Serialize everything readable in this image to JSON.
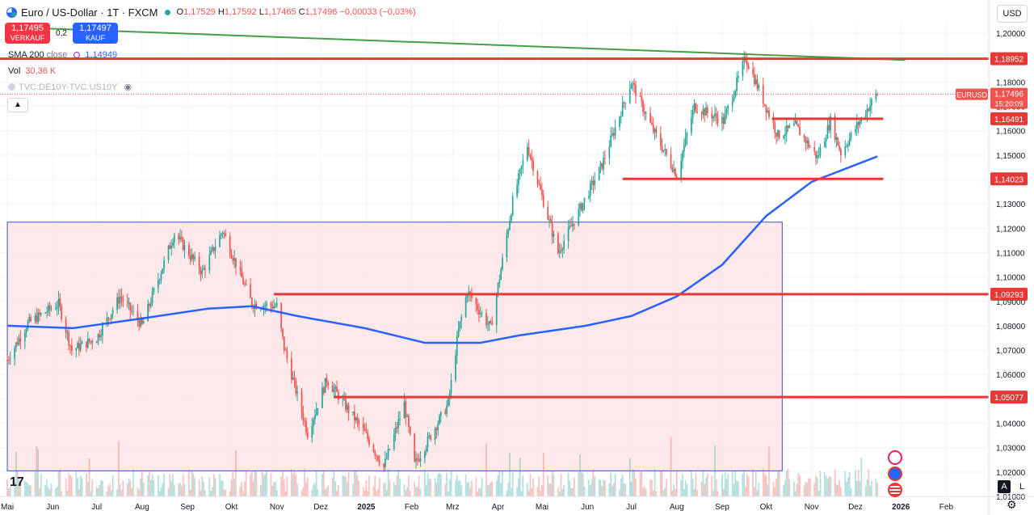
{
  "header": {
    "title": "Euro / US-Dollar · 1T · FXCM",
    "open_label": "O",
    "open": "1,17529",
    "high_label": "H",
    "high": "1,17592",
    "low_label": "L",
    "low": "1,17465",
    "close_label": "C",
    "close": "1,17496",
    "change": "−0,00033 (−0,03%)"
  },
  "trade": {
    "sell_price": "1,17495",
    "sell_label": "VERKAUF",
    "spread": "0,2",
    "buy_price": "1,17497",
    "buy_label": "KAUF"
  },
  "indicators": {
    "sma_label": "SMA 200",
    "sma_source": "close",
    "sma_value": "1,14949",
    "vol_label": "Vol",
    "vol_value": "30,36 K",
    "compare_label": "TVC:DE10Y-TVC:US10Y"
  },
  "currency_button": "USD",
  "colors": {
    "up": "#26a69a",
    "down": "#ef5350",
    "sma": "#2962ff",
    "trend": "#43a047",
    "level": "#e53935",
    "zone_fill": "#fde4e6",
    "zone_border": "#3f51b5"
  },
  "chart_data": {
    "type": "candlestick",
    "symbol": "EURUSD",
    "interval": "1T",
    "ylim": [
      1.01,
      1.205
    ],
    "y_ticks": [
      "1,20000",
      "1,19000",
      "1,18000",
      "1,17000",
      "1,16000",
      "1,15000",
      "1,14000",
      "1,13000",
      "1,12000",
      "1,11000",
      "1,10000",
      "1,09000",
      "1,08000",
      "1,07000",
      "1,06000",
      "1,05000",
      "1,04000",
      "1,03000",
      "1,02000",
      "1,01000"
    ],
    "x_ticks": [
      "Mai",
      "Jun",
      "Jul",
      "Aug",
      "Sep",
      "Okt",
      "Nov",
      "Dez",
      "2025",
      "Feb",
      "Mrz",
      "Apr",
      "Mai",
      "Jun",
      "Jul",
      "Aug",
      "Sep",
      "Okt",
      "Nov",
      "Dez",
      "2026",
      "Feb"
    ],
    "price_path": [
      [
        "2024-05-01",
        1.066
      ],
      [
        "2024-05-15",
        1.081
      ],
      [
        "2024-06-05",
        1.089
      ],
      [
        "2024-06-14",
        1.07
      ],
      [
        "2024-07-01",
        1.075
      ],
      [
        "2024-07-17",
        1.092
      ],
      [
        "2024-08-01",
        1.08
      ],
      [
        "2024-08-23",
        1.118
      ],
      [
        "2024-09-11",
        1.102
      ],
      [
        "2024-09-25",
        1.119
      ],
      [
        "2024-10-15",
        1.089
      ],
      [
        "2024-11-01",
        1.088
      ],
      [
        "2024-11-06",
        1.071
      ],
      [
        "2024-11-22",
        1.036
      ],
      [
        "2024-12-05",
        1.058
      ],
      [
        "2024-12-31",
        1.036
      ],
      [
        "2025-01-13",
        1.022
      ],
      [
        "2025-01-27",
        1.048
      ],
      [
        "2025-02-03",
        1.023
      ],
      [
        "2025-02-26",
        1.048
      ],
      [
        "2025-03-05",
        1.078
      ],
      [
        "2025-03-11",
        1.094
      ],
      [
        "2025-03-27",
        1.079
      ],
      [
        "2025-04-11",
        1.131
      ],
      [
        "2025-04-21",
        1.154
      ],
      [
        "2025-05-12",
        1.11
      ],
      [
        "2025-06-11",
        1.146
      ],
      [
        "2025-07-01",
        1.18
      ],
      [
        "2025-07-16",
        1.16
      ],
      [
        "2025-08-01",
        1.142
      ],
      [
        "2025-08-13",
        1.17
      ],
      [
        "2025-09-02",
        1.164
      ],
      [
        "2025-09-17",
        1.19
      ],
      [
        "2025-10-09",
        1.158
      ],
      [
        "2025-10-21",
        1.162
      ],
      [
        "2025-11-05",
        1.149
      ],
      [
        "2025-11-14",
        1.164
      ],
      [
        "2025-11-21",
        1.151
      ],
      [
        "2025-12-05",
        1.165
      ],
      [
        "2025-12-16",
        1.1755
      ]
    ],
    "series": [
      {
        "name": "SMA 200",
        "color": "#2962ff",
        "points": [
          [
            "2024-05-01",
            1.08
          ],
          [
            "2024-06-15",
            1.079
          ],
          [
            "2024-08-01",
            1.083
          ],
          [
            "2024-09-15",
            1.087
          ],
          [
            "2024-10-15",
            1.088
          ],
          [
            "2024-11-15",
            1.084
          ],
          [
            "2024-12-31",
            1.079
          ],
          [
            "2025-02-10",
            1.073
          ],
          [
            "2025-03-20",
            1.073
          ],
          [
            "2025-04-15",
            1.076
          ],
          [
            "2025-05-31",
            1.08
          ],
          [
            "2025-07-01",
            1.084
          ],
          [
            "2025-08-01",
            1.092
          ],
          [
            "2025-09-01",
            1.105
          ],
          [
            "2025-10-01",
            1.125
          ],
          [
            "2025-11-01",
            1.139
          ],
          [
            "2025-12-16",
            1.1495
          ]
        ]
      }
    ],
    "horizontal_levels": [
      {
        "value": 1.18952,
        "label": "1,18952"
      },
      {
        "value": 1.16491,
        "label": "1,16491"
      },
      {
        "value": 1.14023,
        "label": "1,14023"
      },
      {
        "value": 1.09293,
        "label": "1,09293"
      },
      {
        "value": 1.05077,
        "label": "1,05077"
      }
    ],
    "trendline": {
      "from": [
        "2024-05-01",
        1.2025
      ],
      "to": [
        "2026-01-04",
        1.189
      ]
    },
    "range_box": {
      "from": "2024-05-01",
      "to": "2025-10-12",
      "top": 1.1225,
      "bottom": 1.0205
    },
    "last_price": {
      "symbol": "EURUSD",
      "value": "1,17496",
      "countdown": "15:20:09"
    },
    "volume_label": "Vol",
    "grid": true
  }
}
